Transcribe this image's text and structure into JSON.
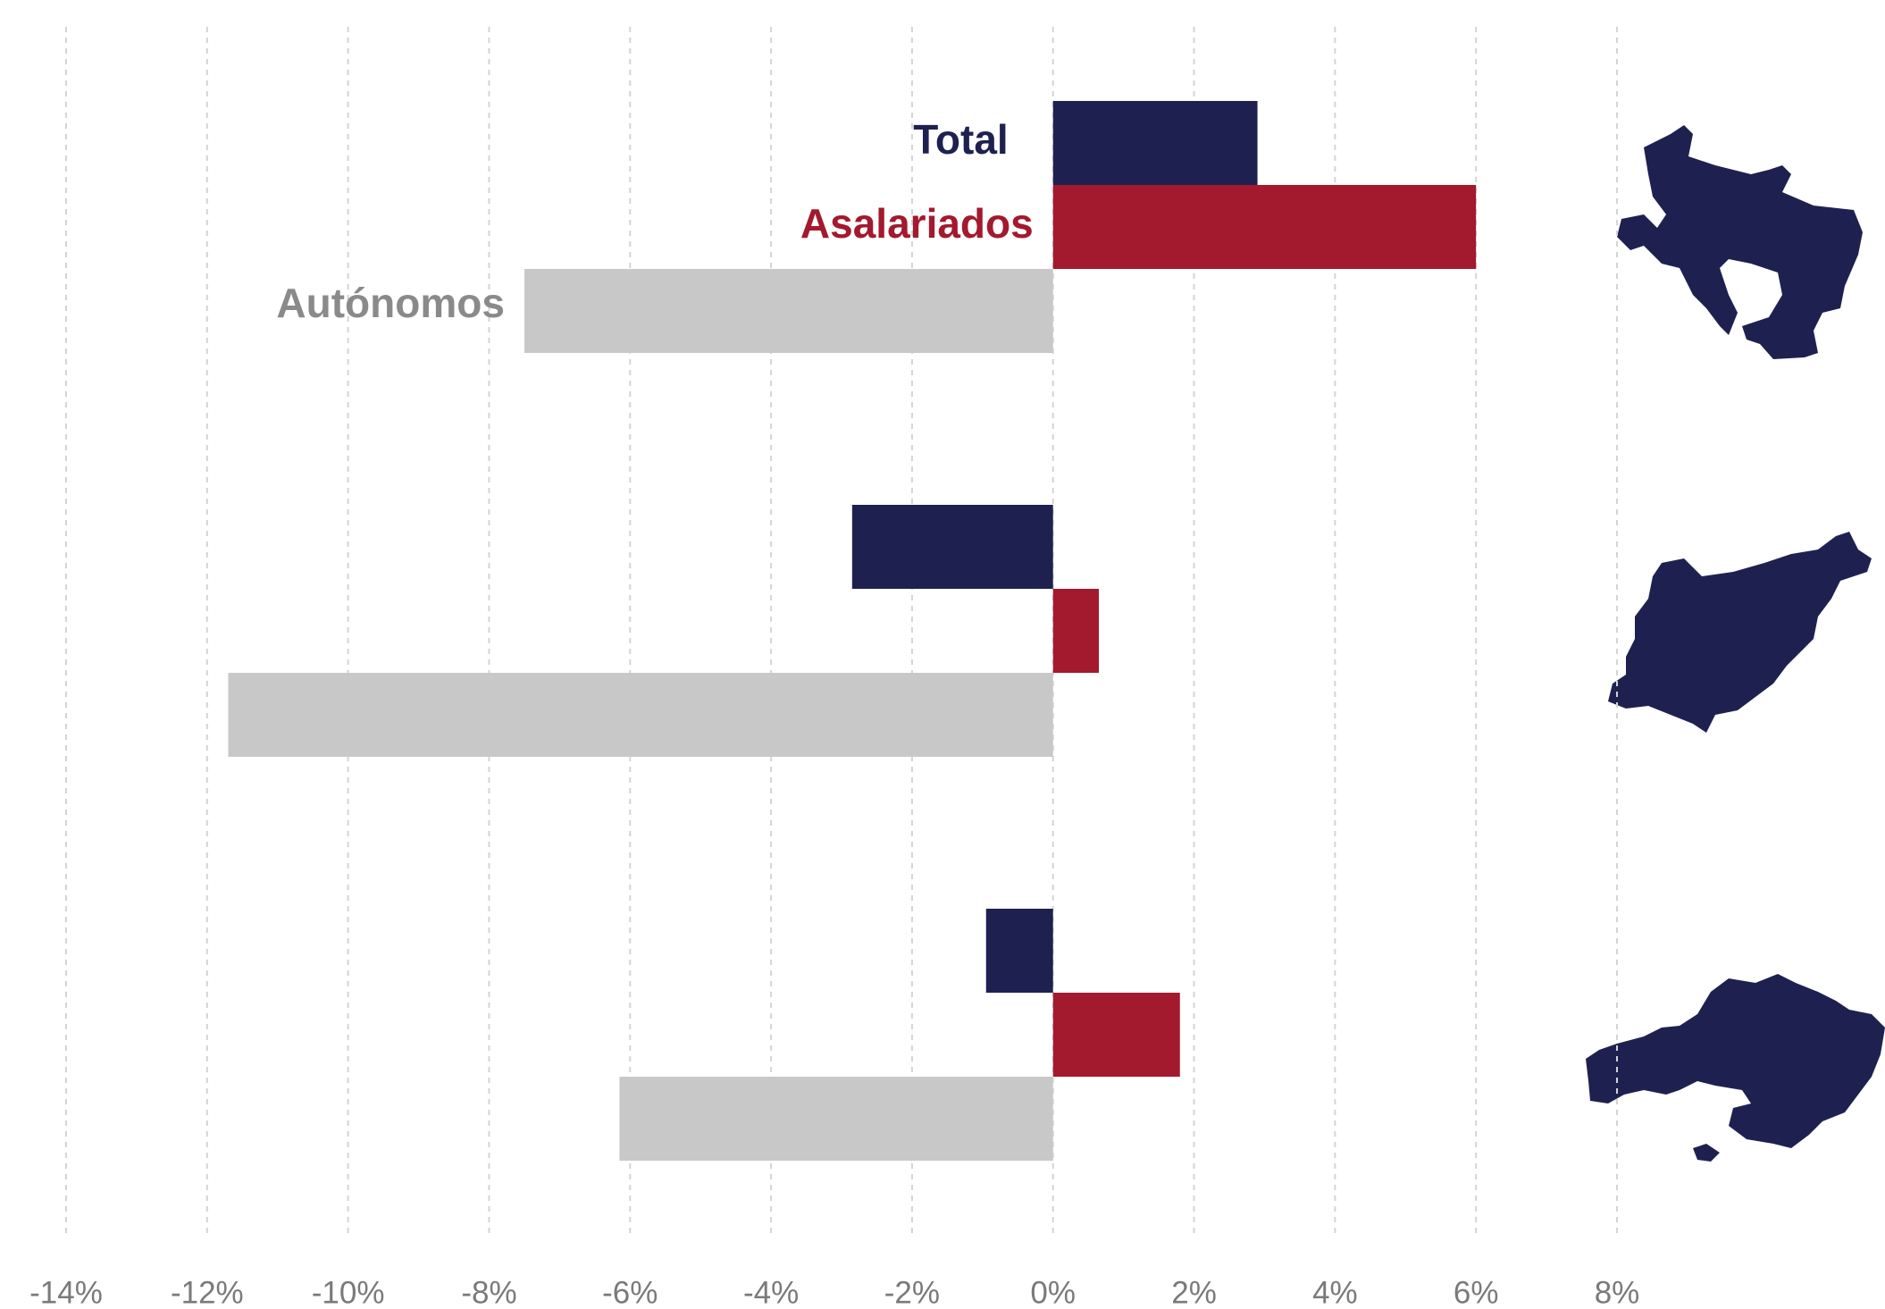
{
  "chart_data": {
    "type": "bar",
    "orientation": "horizontal",
    "categories": [
      null,
      null,
      null
    ],
    "series": [
      {
        "name": "Total",
        "color": "#1e2150",
        "values": [
          2.9,
          -2.85,
          -0.95
        ]
      },
      {
        "name": "Asalariados",
        "color": "#a3192e",
        "values": [
          6.0,
          0.65,
          1.8
        ]
      },
      {
        "name": "Autónomos",
        "color": "#c8c8c8",
        "values": [
          -7.5,
          -11.7,
          -6.15
        ]
      }
    ],
    "xlim": [
      -14,
      8
    ],
    "xticks": [
      {
        "value": -14,
        "label": "-14%"
      },
      {
        "value": -12,
        "label": "-12%"
      },
      {
        "value": -10,
        "label": "-10%"
      },
      {
        "value": -8,
        "label": "-8%"
      },
      {
        "value": -6,
        "label": "-6%"
      },
      {
        "value": -4,
        "label": "-4%"
      },
      {
        "value": -2,
        "label": "-2%"
      },
      {
        "value": 0,
        "label": "0%"
      },
      {
        "value": 2,
        "label": "2%"
      },
      {
        "value": 4,
        "label": "4%"
      },
      {
        "value": 6,
        "label": "6%"
      },
      {
        "value": 8,
        "label": "8%"
      }
    ],
    "grid": true
  }
}
